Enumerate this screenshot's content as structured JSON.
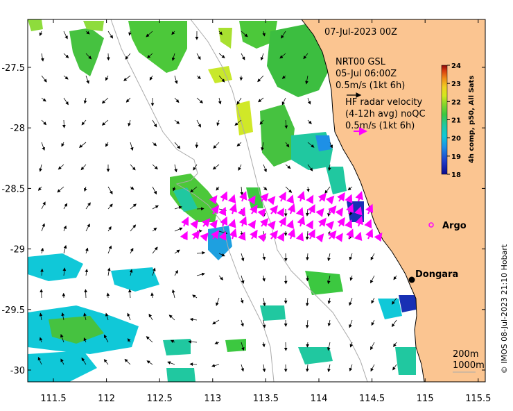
{
  "map": {
    "date_label": "07-Jul-2023 00Z",
    "x_ticks": [
      "111.5",
      "112",
      "112.5",
      "113",
      "113.5",
      "114",
      "114.5",
      "115",
      "115.5"
    ],
    "y_ticks": [
      "-27.5",
      "-28",
      "-28.5",
      "-29",
      "-29.5",
      "-30"
    ],
    "model_legend": {
      "line1": "NRT00 GSL",
      "line2": "05-Jul 06:00Z",
      "line3": "0.5m/s (1kt 6h)"
    },
    "radar_legend": {
      "line1": "HF radar velocity",
      "line2": "(4-12h avg) noQC",
      "line3": "0.5m/s (1kt 6h)"
    },
    "colorbar": {
      "title": "4h comp, p50, All Sats",
      "ticks": [
        "24",
        "23",
        "22",
        "21",
        "20",
        "19",
        "18"
      ],
      "min": 18,
      "max": 24
    },
    "places": {
      "argo": "Argo",
      "dongara": "Dongara"
    },
    "isobaths": {
      "shallow": "200m",
      "deep": "1000m"
    },
    "credit": "© IMOS 08-Jul-2023 21:10 Hobart",
    "colors": {
      "land": "#fbc591",
      "radar_arrows": "#ff00ff",
      "model_arrows": "#000000",
      "argo_marker": "#ff00ff",
      "isobath": "#aaaaaa"
    }
  }
}
